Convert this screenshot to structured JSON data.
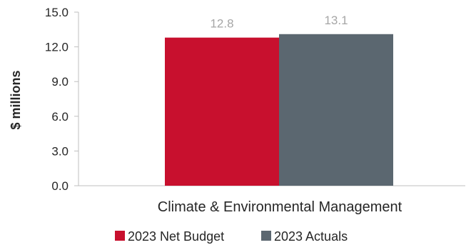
{
  "chart_data": {
    "type": "bar",
    "categories": [
      "Climate & Environmental Management"
    ],
    "series": [
      {
        "name": "2023 Net Budget",
        "values": [
          12.8
        ],
        "color": "#c8102e"
      },
      {
        "name": "2023 Actuals",
        "values": [
          13.1
        ],
        "color": "#5b6770"
      }
    ],
    "data_labels": [
      "12.8",
      "13.1"
    ],
    "ylabel": "$ millions",
    "xlabel": "",
    "ylim": [
      0,
      15
    ],
    "yticks": [
      "0.0",
      "3.0",
      "6.0",
      "9.0",
      "12.0",
      "15.0"
    ],
    "grid": false,
    "legend_position": "bottom",
    "axis_color": "#bfbfbf",
    "data_label_color": "#a6a6a6"
  }
}
